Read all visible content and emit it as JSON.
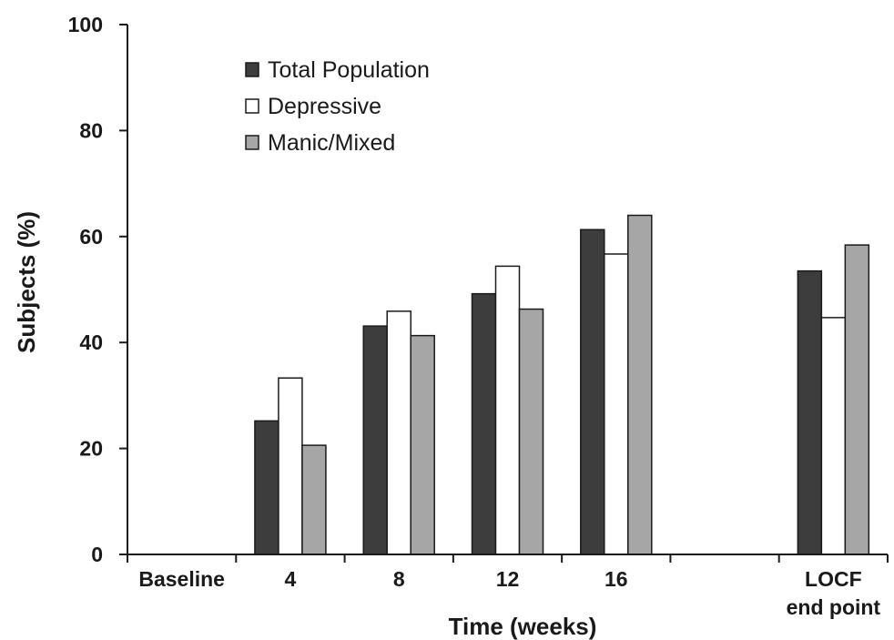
{
  "chart_data": {
    "type": "bar",
    "title": "",
    "xlabel": "Time (weeks)",
    "ylabel": "Subjects (%)",
    "ylim": [
      0,
      100
    ],
    "yticks": [
      0,
      20,
      40,
      60,
      80,
      100
    ],
    "categories": [
      [
        "Baseline"
      ],
      [
        "4"
      ],
      [
        "8"
      ],
      [
        "12"
      ],
      [
        "16"
      ],
      [
        ""
      ],
      [
        "LOCF",
        "end point"
      ]
    ],
    "series": [
      {
        "name": "Total Population",
        "color": "#3d3d3d",
        "values": [
          null,
          25.2,
          43.1,
          49.2,
          61.3,
          null,
          53.5
        ]
      },
      {
        "name": "Depressive",
        "color": "#ffffff",
        "values": [
          null,
          33.3,
          45.9,
          54.4,
          56.7,
          null,
          44.7
        ]
      },
      {
        "name": "Manic/Mixed",
        "color": "#a6a6a6",
        "values": [
          null,
          20.6,
          41.3,
          46.3,
          64.0,
          null,
          58.4
        ]
      }
    ],
    "legend_position": "top-left",
    "grid": false
  }
}
